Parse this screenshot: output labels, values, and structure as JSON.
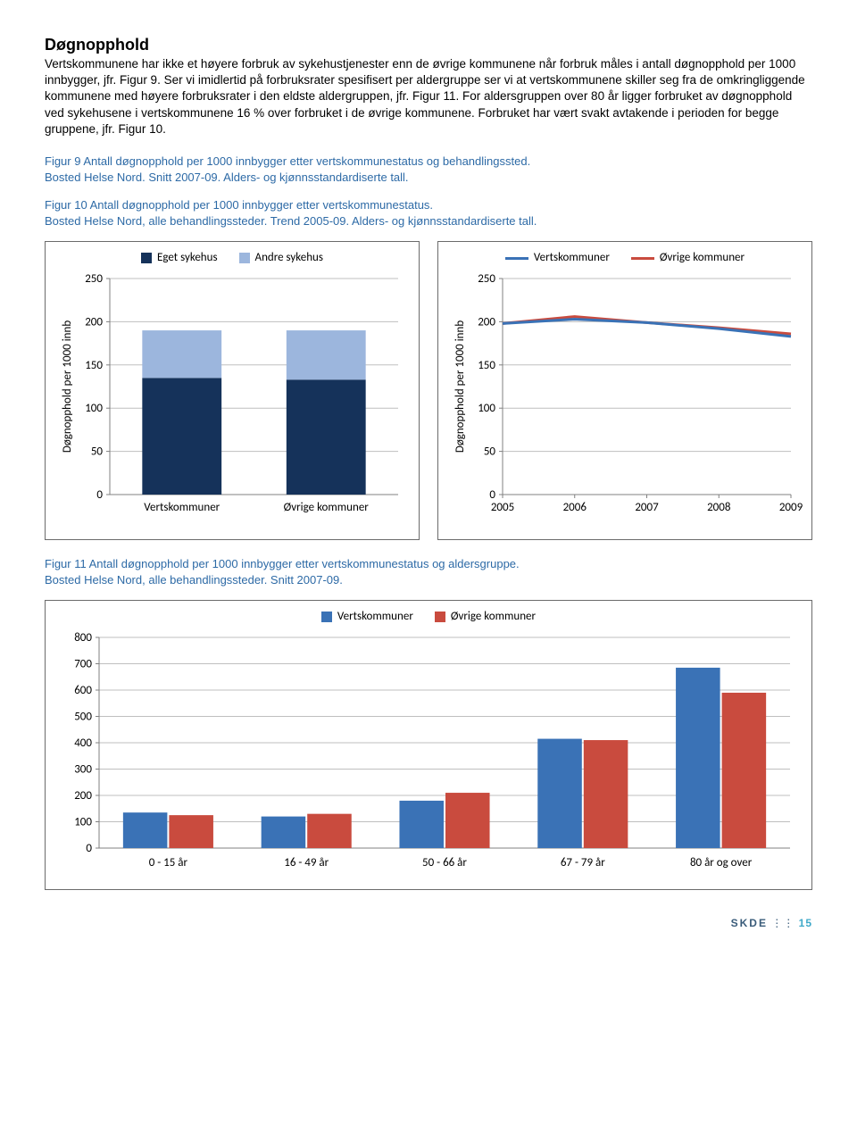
{
  "heading": "Døgnopphold",
  "paragraph": "Vertskommunene har ikke et høyere forbruk av sykehustjenester enn de øvrige kommunene når forbruk måles i antall døgnopphold per 1000 innbygger, jfr. Figur 9. Ser vi imidlertid på forbruksrater spesifisert per aldergruppe ser vi at vertskommunene skiller seg fra de omkringliggende kommunene med høyere forbruksrater i den eldste aldergruppen, jfr. Figur 11. For aldersgruppen over 80 år ligger forbruket av døgnopphold ved sykehusene i vertskommunene 16 % over forbruket i de øvrige kommunene. Forbruket har vært svakt avtakende i perioden for begge gruppene, jfr. Figur 10.",
  "fig9": {
    "title": "Figur 9 Antall døgnopphold per 1000 innbygger etter vertskommunestatus og behandlingssted.",
    "sub": "Bosted Helse Nord. Snitt 2007-09. Alders- og kjønnsstandardiserte tall."
  },
  "fig10": {
    "title": "Figur 10 Antall døgnopphold per 1000 innbygger etter vertskommunestatus.",
    "sub": "Bosted Helse Nord, alle behandlingssteder. Trend 2005-09. Alders- og kjønnsstandardiserte tall."
  },
  "fig11": {
    "title": "Figur 11 Antall døgnopphold per 1000 innbygger etter vertskommunestatus og aldersgruppe.",
    "sub": "Bosted Helse Nord, alle behandlingssteder. Snitt 2007-09."
  },
  "chart9": {
    "type": "stacked-bar",
    "legend": [
      "Eget sykehus",
      "Andre sykehus"
    ],
    "legend_colors": [
      "#15325a",
      "#9cb6dd"
    ],
    "categories": [
      "Vertskommuner",
      "Øvrige kommuner"
    ],
    "bottom_values": [
      135,
      133
    ],
    "top_values": [
      55,
      57
    ],
    "ylim": [
      0,
      250
    ],
    "ytick_step": 50,
    "ylabel": "Døgnopphold per 1000 innb",
    "grid_color": "#bfbfbf",
    "axis_color": "#808080",
    "bg": "#ffffff",
    "label_fontsize": 13,
    "bar_width": 0.55
  },
  "chart10": {
    "type": "line",
    "legend": [
      "Vertskommuner",
      "Øvrige kommuner"
    ],
    "legend_colors": [
      "#3a72b6",
      "#c94b3e"
    ],
    "x": [
      2005,
      2006,
      2007,
      2008,
      2009
    ],
    "series_verts": [
      198,
      203,
      199,
      192,
      183
    ],
    "series_ovrige": [
      198,
      206,
      199,
      193,
      186
    ],
    "ylim": [
      0,
      250
    ],
    "ytick_step": 50,
    "ylabel": "Døgnopphold per 1000 innb",
    "grid_color": "#bfbfbf",
    "axis_color": "#808080",
    "line_width": 3
  },
  "chart11": {
    "type": "grouped-bar",
    "legend": [
      "Vertskommuner",
      "Øvrige kommuner"
    ],
    "legend_colors": [
      "#3a72b6",
      "#c94b3e"
    ],
    "categories": [
      "0 - 15 år",
      "16 - 49 år",
      "50 - 66 år",
      "67 - 79 år",
      "80 år og over"
    ],
    "verts": [
      135,
      120,
      180,
      415,
      685
    ],
    "ovrige": [
      125,
      130,
      210,
      410,
      590
    ],
    "ylim": [
      0,
      800
    ],
    "ytick_step": 100,
    "grid_color": "#bfbfbf",
    "axis_color": "#808080",
    "bar_width": 0.32
  },
  "footer": {
    "logo": "SKDE",
    "page": "15"
  }
}
